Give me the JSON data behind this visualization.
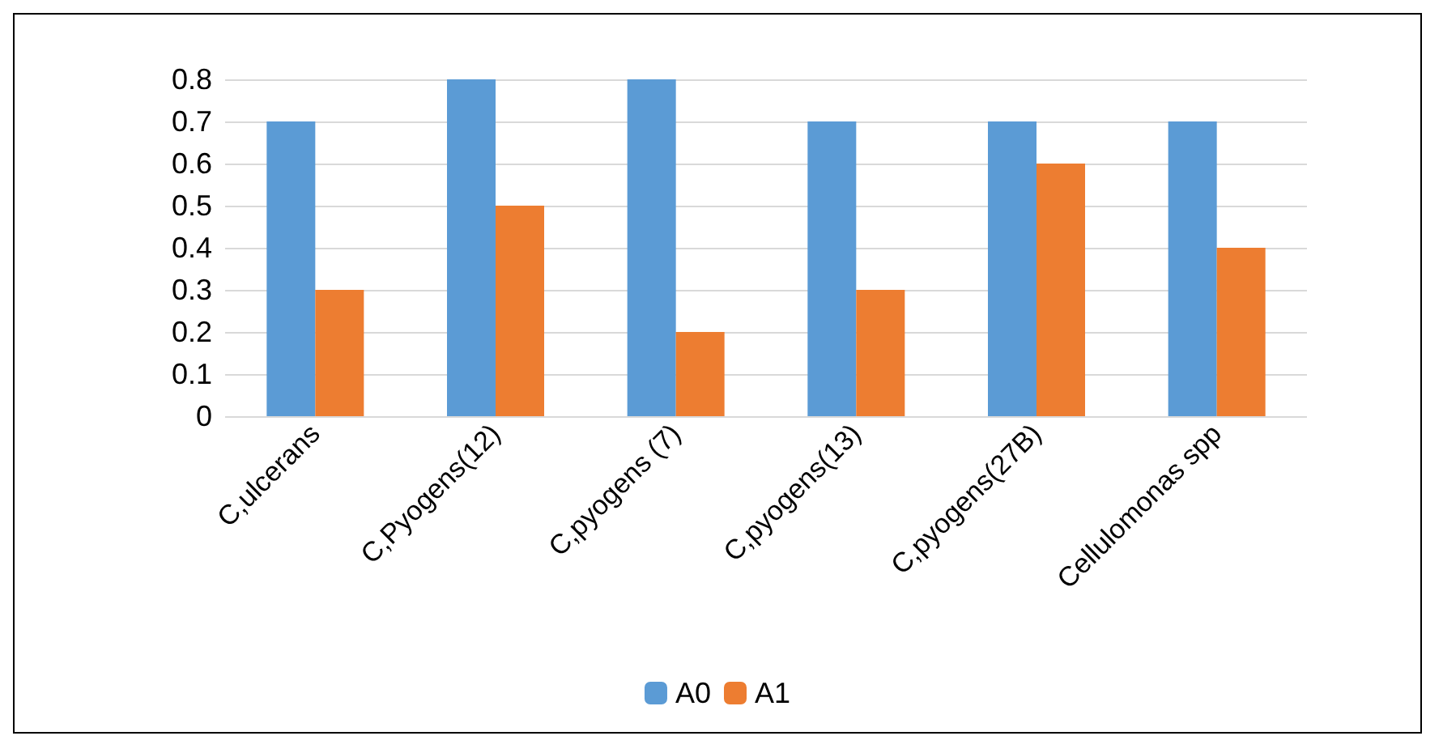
{
  "chart_data": {
    "type": "bar",
    "categories": [
      "C,ulcerans",
      "C,Pyogens(12)",
      "C,pyogens (7)",
      "C,pyogens(13)",
      "C,pyogens(27B)",
      "Cellulomonas spp"
    ],
    "series": [
      {
        "name": "A0",
        "color": "#5b9bd5",
        "values": [
          0.7,
          0.8,
          0.8,
          0.7,
          0.7,
          0.7
        ]
      },
      {
        "name": "A1",
        "color": "#ed7d31",
        "values": [
          0.3,
          0.5,
          0.2,
          0.3,
          0.6,
          0.4
        ]
      }
    ],
    "ylim": [
      0,
      0.8
    ],
    "yticks": [
      0,
      0.1,
      0.2,
      0.3,
      0.4,
      0.5,
      0.6,
      0.7,
      0.8
    ],
    "grid": true,
    "legend": "bottom"
  }
}
